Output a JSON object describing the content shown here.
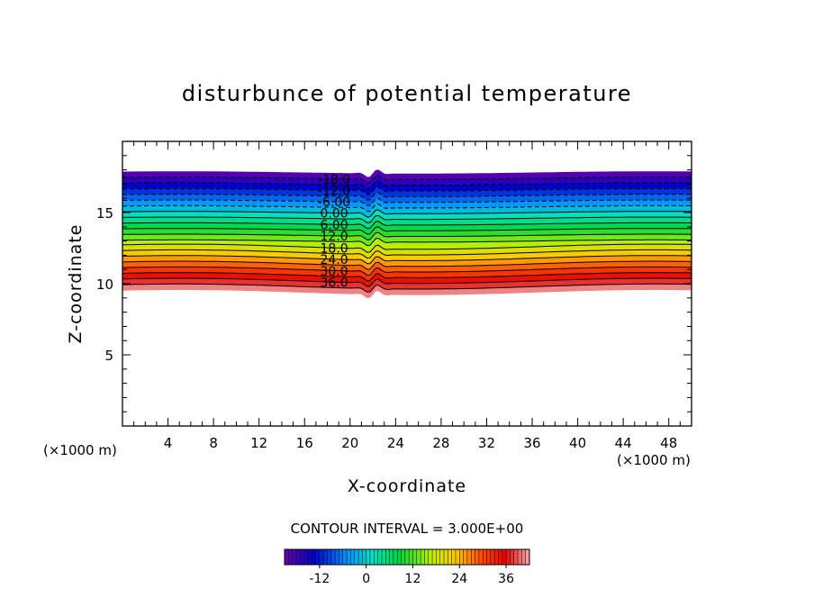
{
  "chart_data": {
    "type": "heatmap",
    "title": "disturbunce of potential temperature",
    "xlabel": "X-coordinate",
    "ylabel": "Z-coordinate",
    "x_unit": "(×1000 m)",
    "y_unit": "(×1000 m)",
    "xlim": [
      0,
      50
    ],
    "ylim": [
      0,
      20
    ],
    "x_ticks": [
      4,
      8,
      12,
      16,
      20,
      24,
      28,
      32,
      36,
      40,
      44,
      48
    ],
    "y_ticks": [
      5,
      10,
      15
    ],
    "contour_interval_text": "CONTOUR INTERVAL = 3.000E+00",
    "contour_levels": [
      -18,
      -15,
      -12,
      -9,
      -6,
      -3,
      0,
      3,
      6,
      9,
      12,
      15,
      18,
      21,
      24,
      27,
      30,
      33,
      36,
      39
    ],
    "contour_label_texts": [
      "-18.0",
      "-12.0",
      "-6.00",
      "0.00",
      "6.00",
      "12.0",
      "18.0",
      "24.0",
      "30.0",
      "36.0"
    ],
    "contour_label_levels": [
      -18,
      -12,
      -6,
      0,
      6,
      12,
      18,
      24,
      30,
      36
    ],
    "colorbar": {
      "min": -21,
      "max": 42,
      "tick_labels": [
        "-12",
        "0",
        "12",
        "24",
        "36"
      ],
      "tick_values": [
        -12,
        0,
        12,
        24,
        36
      ]
    },
    "field_extent_z": [
      9.4,
      17.8
    ],
    "disturbance_x": 22,
    "grid": false
  }
}
